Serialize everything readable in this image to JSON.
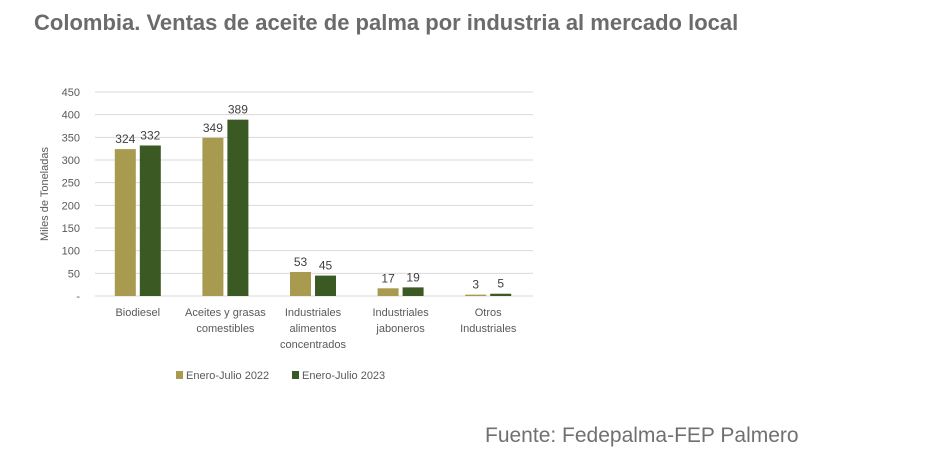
{
  "title": "Colombia. Ventas de aceite de palma por industria al mercado local",
  "source": "Fuente: Fedepalma-FEP Palmero",
  "chart_data": {
    "type": "bar",
    "title": "",
    "ylabel": "Miles de Toneladas",
    "xlabel": "",
    "ylim": [
      0,
      450
    ],
    "yticks": [
      "-",
      "50",
      "100",
      "150",
      "200",
      "250",
      "300",
      "350",
      "400",
      "450"
    ],
    "grid": true,
    "legend_position": "bottom",
    "categories": [
      [
        "Biodiesel"
      ],
      [
        "Aceites y grasas",
        "comestibles"
      ],
      [
        "Industriales",
        "alimentos",
        "concentrados"
      ],
      [
        "Industriales",
        "jaboneros"
      ],
      [
        "Otros",
        "Industriales"
      ]
    ],
    "series": [
      {
        "name": "Enero-Julio 2022",
        "color": "#a89a4f",
        "values": [
          324,
          349,
          53,
          17,
          3
        ]
      },
      {
        "name": "Enero-Julio 2023",
        "color": "#3b5a23",
        "values": [
          332,
          389,
          45,
          19,
          5
        ]
      }
    ]
  }
}
